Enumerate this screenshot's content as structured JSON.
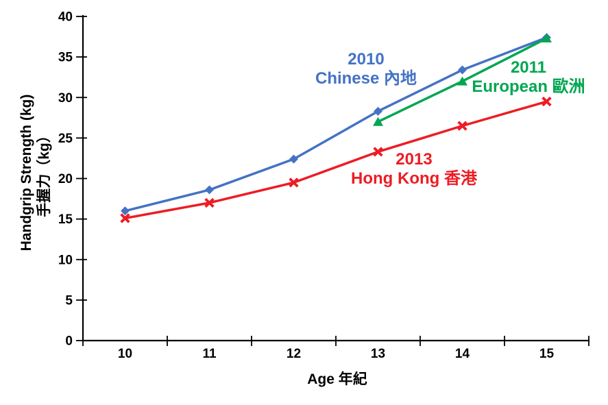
{
  "figure": {
    "background_color": "#ffffff"
  },
  "chart_data": {
    "type": "line",
    "title": "",
    "xlabel": "Age 年紀",
    "ylabel": "Handgrip Strength (kg)",
    "ylabel_zh": "手握力（kg）",
    "x_categories": [
      "10",
      "11",
      "12",
      "13",
      "14",
      "15"
    ],
    "ylim": [
      0,
      40
    ],
    "ytick_step": 5,
    "grid": false,
    "legend_position": "inline-annotations",
    "axis_color": "#000000",
    "series": [
      {
        "name": "2010 Chinese 內地",
        "color": "#4472C4",
        "marker": "diamond",
        "values": [
          16.0,
          18.6,
          22.4,
          28.3,
          33.4,
          37.4
        ]
      },
      {
        "name": "2011 European 歐洲",
        "color": "#00A651",
        "marker": "triangle",
        "values": [
          null,
          null,
          null,
          27.0,
          32.0,
          37.3
        ]
      },
      {
        "name": "2013 Hong Kong 香港",
        "color": "#ED1C24",
        "marker": "x",
        "values": [
          15.1,
          17.0,
          19.5,
          23.3,
          26.5,
          29.5
        ]
      }
    ],
    "annotations": [
      {
        "line1": "2010",
        "line2": "Chinese 內地",
        "color": "#4472C4"
      },
      {
        "line1": "2011",
        "line2": "European 歐洲",
        "color": "#00A651"
      },
      {
        "line1": "2013",
        "line2": "Hong Kong 香港",
        "color": "#ED1C24"
      }
    ]
  }
}
